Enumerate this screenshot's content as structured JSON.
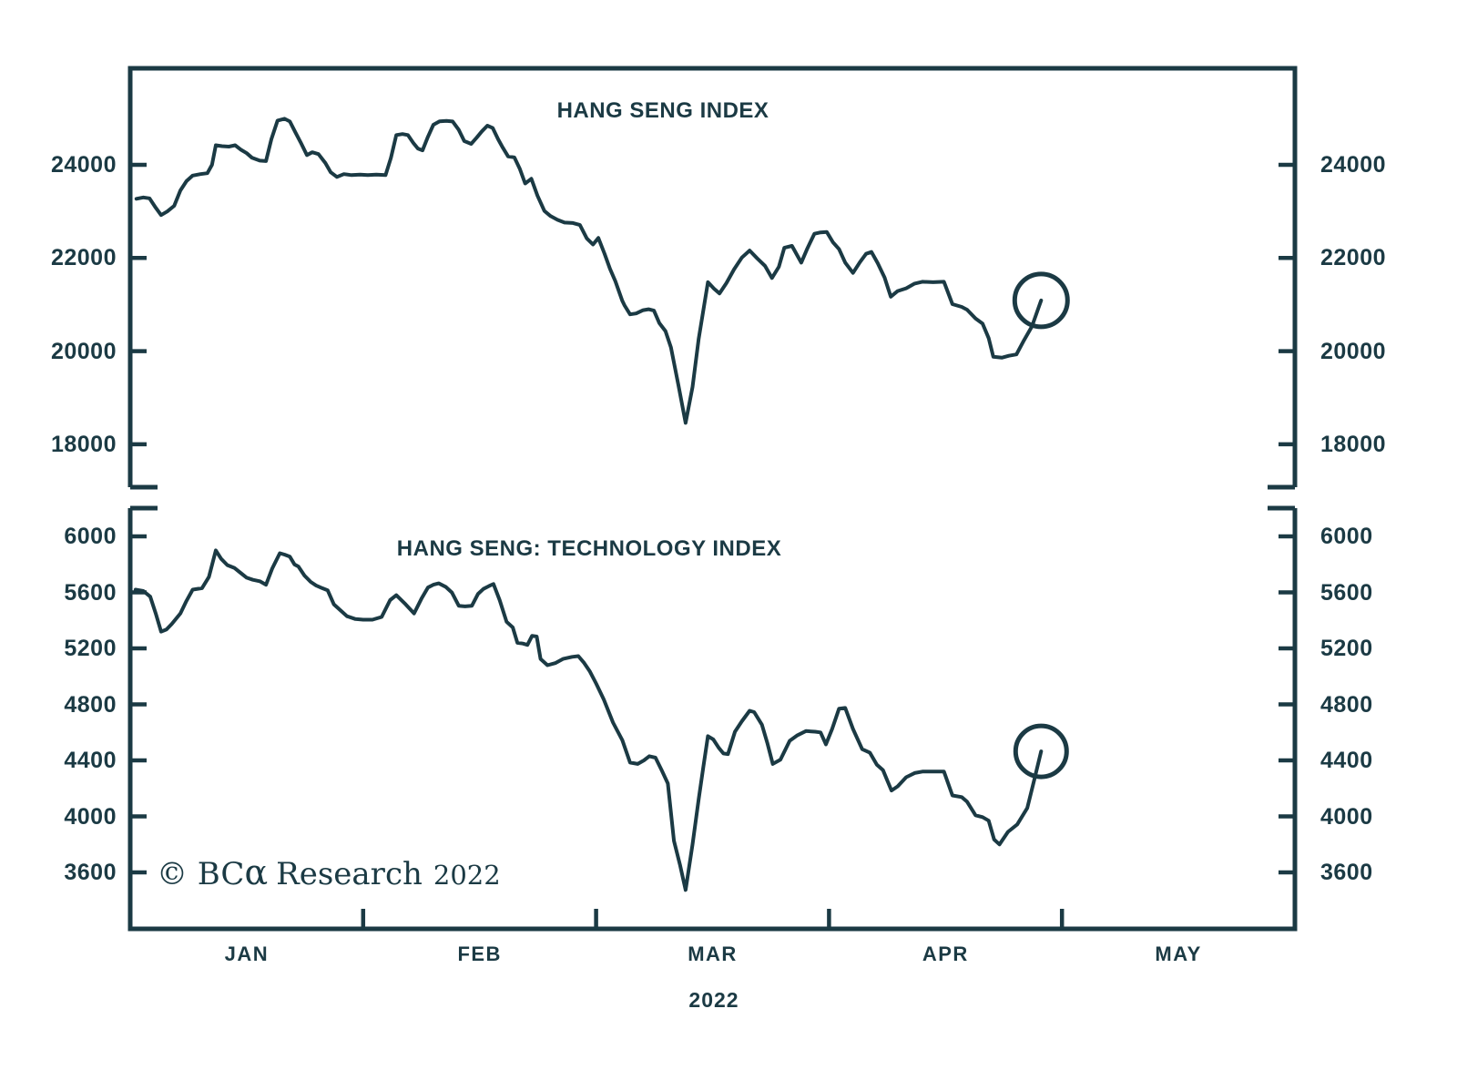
{
  "theme": {
    "ink": "#1b3a44",
    "background": "#ffffff"
  },
  "x_axis": {
    "month_labels": [
      "JAN",
      "FEB",
      "MAR",
      "APR",
      "MAY"
    ],
    "year_label": "2022"
  },
  "watermark": {
    "prefix": "© BC",
    "alpha": "α",
    "name": "Research",
    "year": "2022"
  },
  "chart_data": [
    {
      "type": "line",
      "title": "HANG SENG INDEX",
      "series_name": "hang-seng-index",
      "xlabel": "2022 (JAN–MAY)",
      "ylabel": "",
      "grid": false,
      "legend": "none",
      "xlim_days": [
        0,
        151
      ],
      "ylim": [
        17080,
        26072
      ],
      "y_ticks": [
        24000,
        22000,
        20000,
        18000
      ],
      "annotation": {
        "type": "circle",
        "on": "last-point",
        "radius": 29
      },
      "points": [
        [
          0.8,
          23270
        ],
        [
          1.7,
          23300
        ],
        [
          2.5,
          23280
        ],
        [
          3.3,
          23080
        ],
        [
          4,
          22920
        ],
        [
          4.8,
          23000
        ],
        [
          5.7,
          23120
        ],
        [
          6.5,
          23450
        ],
        [
          7.3,
          23650
        ],
        [
          8.1,
          23770
        ],
        [
          9.1,
          23800
        ],
        [
          10,
          23820
        ],
        [
          10.6,
          24000
        ],
        [
          11.1,
          24420
        ],
        [
          11.9,
          24400
        ],
        [
          12.8,
          24390
        ],
        [
          13.6,
          24420
        ],
        [
          14.3,
          24330
        ],
        [
          15.1,
          24250
        ],
        [
          15.8,
          24150
        ],
        [
          16.8,
          24090
        ],
        [
          17.6,
          24080
        ],
        [
          18.3,
          24550
        ],
        [
          19.1,
          24950
        ],
        [
          20,
          24990
        ],
        [
          20.7,
          24930
        ],
        [
          21.4,
          24700
        ],
        [
          22.1,
          24480
        ],
        [
          22.9,
          24210
        ],
        [
          23.6,
          24270
        ],
        [
          24.4,
          24230
        ],
        [
          25.3,
          24040
        ],
        [
          26,
          23840
        ],
        [
          26.8,
          23740
        ],
        [
          27.7,
          23800
        ],
        [
          28.7,
          23780
        ],
        [
          29.8,
          23790
        ],
        [
          30.8,
          23780
        ],
        [
          31.9,
          23790
        ],
        [
          33.1,
          23780
        ],
        [
          33.8,
          24150
        ],
        [
          34.5,
          24640
        ],
        [
          35.3,
          24660
        ],
        [
          36,
          24640
        ],
        [
          36.7,
          24470
        ],
        [
          37.3,
          24350
        ],
        [
          37.9,
          24310
        ],
        [
          38.6,
          24600
        ],
        [
          39.3,
          24860
        ],
        [
          40.1,
          24935
        ],
        [
          41,
          24945
        ],
        [
          41.8,
          24930
        ],
        [
          42.6,
          24750
        ],
        [
          43.3,
          24510
        ],
        [
          44.2,
          24450
        ],
        [
          44.9,
          24580
        ],
        [
          45.6,
          24720
        ],
        [
          46.3,
          24840
        ],
        [
          47,
          24790
        ],
        [
          47.7,
          24550
        ],
        [
          48.3,
          24370
        ],
        [
          49,
          24180
        ],
        [
          49.8,
          24160
        ],
        [
          50.5,
          23920
        ],
        [
          51.2,
          23600
        ],
        [
          52,
          23700
        ],
        [
          52.8,
          23340
        ],
        [
          53.7,
          23010
        ],
        [
          54.5,
          22900
        ],
        [
          55.4,
          22820
        ],
        [
          56.3,
          22760
        ],
        [
          57.4,
          22750
        ],
        [
          58.3,
          22710
        ],
        [
          59.2,
          22420
        ],
        [
          60,
          22290
        ],
        [
          60.7,
          22430
        ],
        [
          61.5,
          22090
        ],
        [
          62.2,
          21770
        ],
        [
          62.9,
          21500
        ],
        [
          63.8,
          21080
        ],
        [
          64.1,
          20980
        ],
        [
          64.8,
          20790
        ],
        [
          65.6,
          20810
        ],
        [
          66.5,
          20880
        ],
        [
          67.2,
          20900
        ],
        [
          67.9,
          20870
        ],
        [
          68.6,
          20600
        ],
        [
          69.4,
          20430
        ],
        [
          70.1,
          20080
        ],
        [
          71.1,
          19250
        ],
        [
          72,
          18460
        ],
        [
          72.9,
          19230
        ],
        [
          73.7,
          20270
        ],
        [
          74.9,
          21480
        ],
        [
          75.7,
          21340
        ],
        [
          76.4,
          21240
        ],
        [
          77.3,
          21460
        ],
        [
          78.3,
          21760
        ],
        [
          79.3,
          22010
        ],
        [
          80.3,
          22160
        ],
        [
          81.3,
          21990
        ],
        [
          82.3,
          21830
        ],
        [
          83.2,
          21570
        ],
        [
          84.1,
          21810
        ],
        [
          84.8,
          22220
        ],
        [
          85.8,
          22260
        ],
        [
          87,
          21900
        ],
        [
          87.8,
          22210
        ],
        [
          88.7,
          22520
        ],
        [
          89.5,
          22550
        ],
        [
          90.3,
          22560
        ],
        [
          91.1,
          22340
        ],
        [
          91.9,
          22190
        ],
        [
          92.7,
          21900
        ],
        [
          93.7,
          21680
        ],
        [
          94.6,
          21910
        ],
        [
          95.4,
          22090
        ],
        [
          96.1,
          22130
        ],
        [
          96.9,
          21890
        ],
        [
          97.8,
          21580
        ],
        [
          98.6,
          21170
        ],
        [
          99.5,
          21290
        ],
        [
          100.6,
          21350
        ],
        [
          101.7,
          21450
        ],
        [
          102.7,
          21490
        ],
        [
          104.1,
          21480
        ],
        [
          105.5,
          21490
        ],
        [
          106.6,
          21010
        ],
        [
          107.8,
          20950
        ],
        [
          108.5,
          20890
        ],
        [
          109.6,
          20700
        ],
        [
          110.5,
          20590
        ],
        [
          111.3,
          20280
        ],
        [
          111.9,
          19880
        ],
        [
          113,
          19860
        ],
        [
          113.9,
          19900
        ],
        [
          114.9,
          19930
        ],
        [
          115.8,
          20210
        ],
        [
          116.9,
          20530
        ],
        [
          118.1,
          21090
        ]
      ]
    },
    {
      "type": "line",
      "title": "HANG SENG: TECHNOLOGY INDEX",
      "series_name": "hang-seng-technology-index",
      "xlabel": "2022 (JAN–MAY)",
      "ylabel": "",
      "grid": false,
      "legend": "none",
      "xlim_days": [
        0,
        151
      ],
      "ylim": [
        3197,
        6202
      ],
      "y_ticks": [
        6000,
        5600,
        5200,
        4800,
        4400,
        4000,
        3600
      ],
      "annotation": {
        "type": "circle",
        "on": "last-point",
        "radius": 28
      },
      "points": [
        [
          0.7,
          5620
        ],
        [
          1.7,
          5610
        ],
        [
          2.6,
          5570
        ],
        [
          3.3,
          5450
        ],
        [
          4,
          5320
        ],
        [
          4.7,
          5335
        ],
        [
          5.4,
          5375
        ],
        [
          6.5,
          5450
        ],
        [
          7.3,
          5540
        ],
        [
          8.1,
          5620
        ],
        [
          9.3,
          5630
        ],
        [
          10.2,
          5710
        ],
        [
          11.1,
          5900
        ],
        [
          11.8,
          5840
        ],
        [
          12.6,
          5795
        ],
        [
          13.5,
          5775
        ],
        [
          14.3,
          5740
        ],
        [
          15.1,
          5705
        ],
        [
          15.9,
          5690
        ],
        [
          16.8,
          5680
        ],
        [
          17.6,
          5655
        ],
        [
          18.4,
          5770
        ],
        [
          19.4,
          5880
        ],
        [
          20,
          5870
        ],
        [
          20.7,
          5855
        ],
        [
          21.3,
          5800
        ],
        [
          21.8,
          5785
        ],
        [
          22.6,
          5720
        ],
        [
          23.4,
          5675
        ],
        [
          24.1,
          5650
        ],
        [
          24.9,
          5630
        ],
        [
          25.6,
          5615
        ],
        [
          26.4,
          5515
        ],
        [
          27.3,
          5470
        ],
        [
          28.1,
          5430
        ],
        [
          29.2,
          5410
        ],
        [
          30.2,
          5405
        ],
        [
          31.4,
          5405
        ],
        [
          32.6,
          5425
        ],
        [
          33.7,
          5545
        ],
        [
          34.5,
          5580
        ],
        [
          35.7,
          5515
        ],
        [
          36.8,
          5450
        ],
        [
          37.8,
          5560
        ],
        [
          38.6,
          5635
        ],
        [
          39.3,
          5655
        ],
        [
          40,
          5665
        ],
        [
          40.9,
          5640
        ],
        [
          41.7,
          5600
        ],
        [
          42.6,
          5505
        ],
        [
          43.4,
          5500
        ],
        [
          44.3,
          5505
        ],
        [
          45.1,
          5590
        ],
        [
          45.8,
          5625
        ],
        [
          46.5,
          5645
        ],
        [
          47.1,
          5660
        ],
        [
          47.9,
          5545
        ],
        [
          48.8,
          5390
        ],
        [
          49.6,
          5350
        ],
        [
          50.2,
          5240
        ],
        [
          50.9,
          5235
        ],
        [
          51.5,
          5225
        ],
        [
          52.1,
          5290
        ],
        [
          52.7,
          5285
        ],
        [
          53.2,
          5125
        ],
        [
          54.1,
          5080
        ],
        [
          55.1,
          5095
        ],
        [
          56.1,
          5125
        ],
        [
          57.3,
          5140
        ],
        [
          58.1,
          5145
        ],
        [
          58.8,
          5100
        ],
        [
          59.6,
          5035
        ],
        [
          60.4,
          4950
        ],
        [
          61.4,
          4835
        ],
        [
          62.6,
          4670
        ],
        [
          63.8,
          4545
        ],
        [
          64.8,
          4385
        ],
        [
          65.8,
          4375
        ],
        [
          66.6,
          4400
        ],
        [
          67.3,
          4430
        ],
        [
          68.1,
          4420
        ],
        [
          68.9,
          4330
        ],
        [
          69.7,
          4235
        ],
        [
          70.5,
          3825
        ],
        [
          71.3,
          3650
        ],
        [
          72,
          3475
        ],
        [
          72.9,
          3800
        ],
        [
          73.7,
          4125
        ],
        [
          74.3,
          4350
        ],
        [
          74.9,
          4573
        ],
        [
          75.6,
          4550
        ],
        [
          76.3,
          4490
        ],
        [
          76.9,
          4450
        ],
        [
          77.5,
          4445
        ],
        [
          78.4,
          4605
        ],
        [
          79.3,
          4680
        ],
        [
          80.3,
          4755
        ],
        [
          80.9,
          4745
        ],
        [
          81.9,
          4655
        ],
        [
          82.6,
          4525
        ],
        [
          83.3,
          4375
        ],
        [
          84.3,
          4405
        ],
        [
          85.5,
          4540
        ],
        [
          86.5,
          4580
        ],
        [
          87.6,
          4610
        ],
        [
          88.8,
          4605
        ],
        [
          89.5,
          4600
        ],
        [
          90.2,
          4515
        ],
        [
          91,
          4625
        ],
        [
          91.9,
          4770
        ],
        [
          92.7,
          4775
        ],
        [
          93.7,
          4625
        ],
        [
          94.9,
          4480
        ],
        [
          95.9,
          4455
        ],
        [
          96.8,
          4370
        ],
        [
          97.6,
          4330
        ],
        [
          98.2,
          4250
        ],
        [
          98.7,
          4185
        ],
        [
          99.5,
          4215
        ],
        [
          100.6,
          4280
        ],
        [
          101.7,
          4310
        ],
        [
          102.7,
          4320
        ],
        [
          104.1,
          4320
        ],
        [
          105.5,
          4320
        ],
        [
          106.6,
          4150
        ],
        [
          107.8,
          4138
        ],
        [
          108.5,
          4105
        ],
        [
          109.6,
          4008
        ],
        [
          110.5,
          3995
        ],
        [
          111.3,
          3970
        ],
        [
          112,
          3835
        ],
        [
          112.7,
          3800
        ],
        [
          113.8,
          3890
        ],
        [
          115,
          3943
        ],
        [
          116.3,
          4060
        ],
        [
          117.2,
          4260
        ],
        [
          118.1,
          4465
        ]
      ]
    }
  ]
}
